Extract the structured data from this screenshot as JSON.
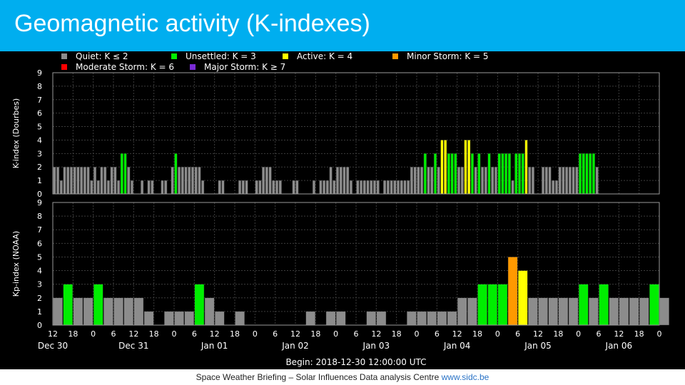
{
  "slide": {
    "title": "Geomagnetic activity (K-indexes)",
    "footer_text": "Space Weather Briefing – Solar Influences Data analysis Centre",
    "footer_link": "www.sidc.be"
  },
  "colors": {
    "quiet": "#8c8c8c",
    "unsettled": "#00ee00",
    "active": "#ffff00",
    "minor_storm": "#ff9900",
    "moderate_storm": "#ff0000",
    "major_storm": "#7a2bd6",
    "title_bar": "#00aeef"
  },
  "legend": [
    {
      "label": "Quiet: K ≤ 2",
      "color": "#8c8c8c"
    },
    {
      "label": "Unsettled: K = 3",
      "color": "#00ee00"
    },
    {
      "label": "Active: K = 4",
      "color": "#ffff00"
    },
    {
      "label": "Minor Storm: K = 5",
      "color": "#ff9900"
    },
    {
      "label": "Moderate Storm: K = 6",
      "color": "#ff0000"
    },
    {
      "label": "Major Storm: K ≥ 7",
      "color": "#7a2bd6"
    }
  ],
  "chart_data": [
    {
      "type": "bar",
      "ylabel": "K-index (Dourbes)",
      "ylim": [
        0,
        9
      ],
      "grid": true,
      "interval_hours": 1,
      "values": [
        2,
        2,
        1,
        2,
        2,
        2,
        2,
        2,
        2,
        2,
        2,
        1,
        2,
        1,
        2,
        2,
        1,
        2,
        2,
        1,
        3,
        3,
        2,
        1,
        0,
        0,
        1,
        0,
        1,
        1,
        0,
        0,
        1,
        1,
        0,
        2,
        3,
        2,
        2,
        2,
        2,
        2,
        2,
        2,
        1,
        0,
        0,
        0,
        0,
        1,
        1,
        0,
        0,
        0,
        0,
        1,
        1,
        1,
        0,
        0,
        1,
        1,
        2,
        2,
        2,
        1,
        1,
        1,
        0,
        0,
        0,
        1,
        1,
        0,
        0,
        0,
        0,
        1,
        0,
        1,
        1,
        1,
        2,
        1,
        2,
        2,
        2,
        2,
        1,
        0,
        1,
        1,
        1,
        1,
        1,
        1,
        1,
        0,
        1,
        1,
        1,
        1,
        1,
        1,
        1,
        1,
        2,
        2,
        2,
        2,
        3,
        2,
        2,
        3,
        2,
        4,
        4,
        3,
        3,
        3,
        2,
        2,
        4,
        4,
        3,
        2,
        3,
        2,
        2,
        3,
        2,
        2,
        3,
        3,
        3,
        3,
        1,
        3,
        3,
        3,
        4,
        2,
        2,
        0,
        0,
        2,
        2,
        2,
        1,
        1,
        2,
        2,
        2,
        2,
        2,
        2,
        3,
        3,
        3,
        3,
        3,
        2
      ]
    },
    {
      "type": "bar",
      "ylabel": "Kp-index (NOAA)",
      "xlabel": "Begin: 2018-12-30 12:00:00 UTC",
      "ylim": [
        0,
        9
      ],
      "grid": true,
      "interval_hours": 3,
      "values": [
        2,
        3,
        2,
        2,
        3,
        2,
        2,
        2,
        2,
        1,
        0,
        1,
        1,
        1,
        3,
        2,
        1,
        0,
        1,
        0,
        0,
        0,
        0,
        0,
        0,
        1,
        0,
        1,
        1,
        0,
        0,
        1,
        1,
        0,
        0,
        1,
        1,
        1,
        1,
        1,
        2,
        2,
        3,
        3,
        3,
        5,
        4,
        2,
        2,
        2,
        2,
        2,
        3,
        2,
        3,
        2,
        2,
        2,
        2,
        3,
        2
      ],
      "x_ticks": [
        "12",
        "18",
        "0",
        "6",
        "12",
        "18",
        "0",
        "6",
        "12",
        "18",
        "0",
        "6",
        "12",
        "18",
        "0",
        "6",
        "12",
        "18",
        "0",
        "6",
        "12",
        "18",
        "0",
        "6",
        "12",
        "18",
        "0",
        "6",
        "12",
        "18",
        "0"
      ],
      "day_labels": [
        "Dec 30",
        "Dec 31",
        "Jan 01",
        "Jan 02",
        "Jan 03",
        "Jan 04",
        "Jan 05",
        "Jan 06"
      ],
      "day_label_tick_index": [
        0,
        4,
        8,
        12,
        16,
        20,
        24,
        28
      ]
    }
  ]
}
